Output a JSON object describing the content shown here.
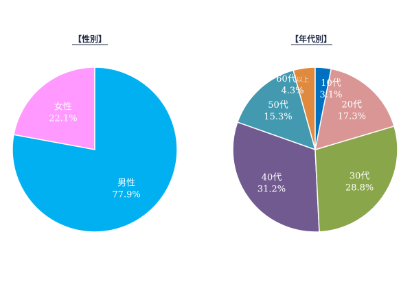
{
  "chart_data": [
    {
      "type": "pie",
      "title": "【性別】",
      "start": "top",
      "direction": "clockwise",
      "slices": [
        {
          "label": "男性",
          "value": 77.9,
          "text": "77.9%",
          "color": "#00B0F0"
        },
        {
          "label": "女性",
          "value": 22.1,
          "text": "22.1%",
          "color": "#FF99FF"
        }
      ]
    },
    {
      "type": "pie",
      "title": "【年代別】",
      "start": "top",
      "direction": "clockwise",
      "slices": [
        {
          "label": "10代",
          "value": 3.1,
          "text": "3.1%",
          "color": "#0070C0"
        },
        {
          "label": "20代",
          "value": 17.3,
          "text": "17.3%",
          "color": "#D99694"
        },
        {
          "label": "30代",
          "value": 28.8,
          "text": "28.8%",
          "color": "#8AA64A"
        },
        {
          "label": "40代",
          "value": 31.2,
          "text": "31.2%",
          "color": "#715A8F"
        },
        {
          "label": "50代",
          "value": 15.3,
          "text": "15.3%",
          "color": "#4299B0"
        },
        {
          "label": "60代",
          "suffix": "以上",
          "value": 4.3,
          "text": "4.3%",
          "color": "#DF8A3E"
        }
      ]
    }
  ]
}
